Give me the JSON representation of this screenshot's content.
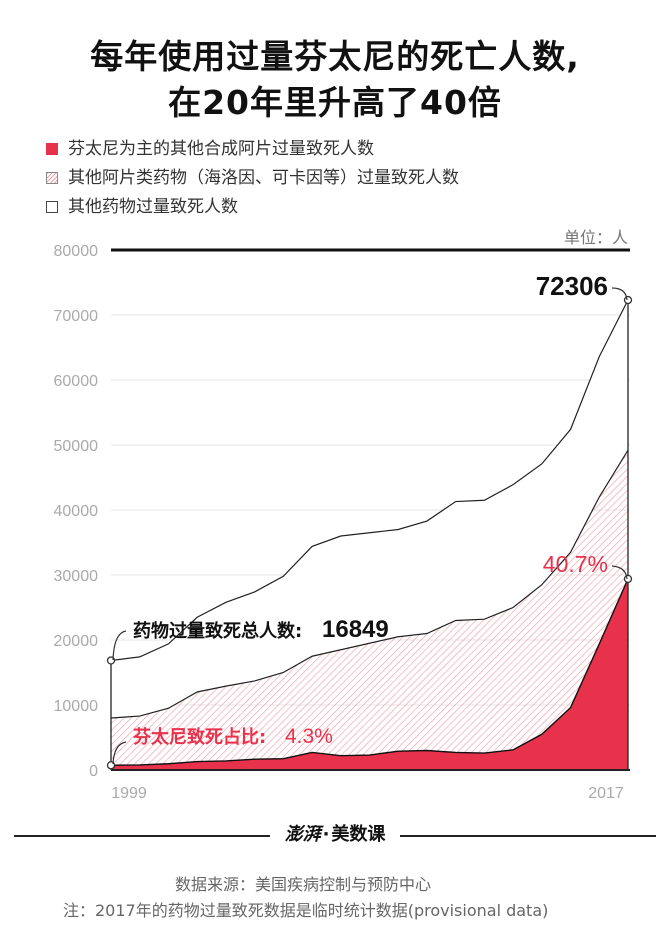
{
  "title": {
    "line1": "每年使用过量芬太尼的死亡人数,",
    "line2": "在20年里升高了40倍"
  },
  "unit_label": "单位：人",
  "brand": {
    "seal": "澎湃",
    "separator": "·",
    "name": "美数课"
  },
  "footer": {
    "source": "数据来源：美国疾病控制与预防中心",
    "note": "注：2017年的药物过量致死数据是临时统计数据(provisional data)"
  },
  "colors": {
    "fentanyl": "#e8324c",
    "opioid_hatch": "#f2a0a8",
    "axis_text": "#aaaaaa",
    "accent_text": "#e8324c"
  },
  "chart_data": {
    "type": "area",
    "stacked": true,
    "legend": [
      {
        "label": "芬太尼为主的其他合成阿片过量致死人数",
        "style": "solid-red"
      },
      {
        "label": "其他阿片类药物（海洛因、可卡因等）过量致死人数",
        "style": "hatched-pink"
      },
      {
        "label": "其他药物过量致死人数",
        "style": "white-outline"
      }
    ],
    "x": [
      1999,
      2000,
      2001,
      2002,
      2003,
      2004,
      2005,
      2006,
      2007,
      2008,
      2009,
      2010,
      2011,
      2012,
      2013,
      2014,
      2015,
      2016,
      2017
    ],
    "x_tick_labels": [
      "1999",
      "2017"
    ],
    "ylim": [
      0,
      80000
    ],
    "y_ticks": [
      0,
      10000,
      20000,
      30000,
      40000,
      50000,
      60000,
      70000,
      80000
    ],
    "series": [
      {
        "name": "芬太尼为主的其他合成阿片过量致死人数",
        "values": [
          730,
          780,
          960,
          1300,
          1400,
          1660,
          1740,
          2700,
          2200,
          2300,
          2900,
          3000,
          2700,
          2600,
          3100,
          5500,
          9600,
          19400,
          29400
        ],
        "cumulative": true
      },
      {
        "name": "其他阿片类药物（海洛因、可卡因等）过量致死人数",
        "values": [
          8000,
          8300,
          9500,
          12000,
          12900,
          13700,
          15000,
          17500,
          18500,
          19500,
          20500,
          21000,
          23000,
          23200,
          25000,
          28500,
          33500,
          42000,
          49200
        ],
        "cumulative": true
      },
      {
        "name": "其他药物过量致死人数",
        "values": [
          16849,
          17400,
          19400,
          23500,
          25800,
          27400,
          29800,
          34400,
          36000,
          36500,
          37000,
          38300,
          41300,
          41500,
          43900,
          47100,
          52400,
          63600,
          72306
        ],
        "cumulative": true
      }
    ],
    "annotations": {
      "total_1999": {
        "label": "药物过量致死总人数:",
        "value": "16849"
      },
      "fentanyl_share_1999": {
        "label": "芬太尼致死占比:",
        "value": "4.3%"
      },
      "total_2017": {
        "value": "72306"
      },
      "fentanyl_share_2017": {
        "value": "40.7%"
      }
    }
  }
}
